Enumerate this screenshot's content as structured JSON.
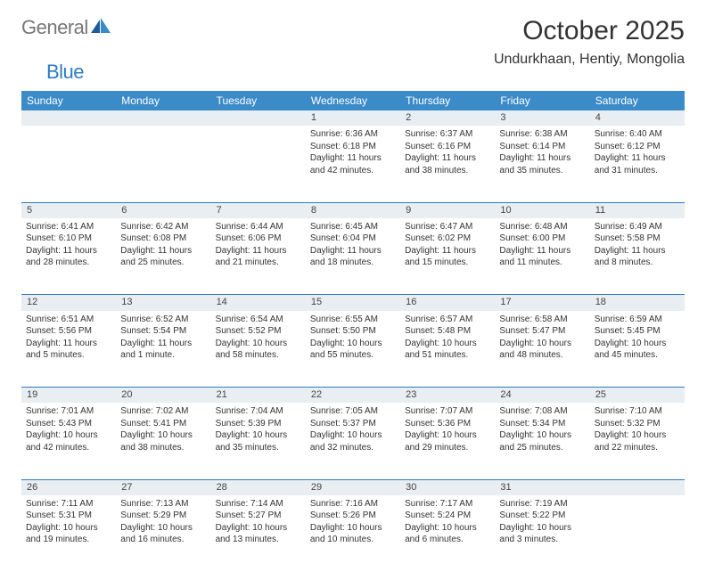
{
  "logo": {
    "word1": "General",
    "word2": "Blue"
  },
  "title": "October 2025",
  "location": "Undurkhaan, Hentiy, Mongolia",
  "colors": {
    "header_bg": "#3b8bc9",
    "header_text": "#ffffff",
    "border": "#2f7bbf",
    "daynum_bg": "#e9eef2",
    "logo_gray": "#777777",
    "logo_blue": "#2f7bbf"
  },
  "day_names": [
    "Sunday",
    "Monday",
    "Tuesday",
    "Wednesday",
    "Thursday",
    "Friday",
    "Saturday"
  ],
  "weeks": [
    {
      "nums": [
        "",
        "",
        "",
        "1",
        "2",
        "3",
        "4"
      ],
      "cells": [
        {},
        {},
        {},
        {
          "sunrise": "Sunrise: 6:36 AM",
          "sunset": "Sunset: 6:18 PM",
          "day1": "Daylight: 11 hours",
          "day2": "and 42 minutes."
        },
        {
          "sunrise": "Sunrise: 6:37 AM",
          "sunset": "Sunset: 6:16 PM",
          "day1": "Daylight: 11 hours",
          "day2": "and 38 minutes."
        },
        {
          "sunrise": "Sunrise: 6:38 AM",
          "sunset": "Sunset: 6:14 PM",
          "day1": "Daylight: 11 hours",
          "day2": "and 35 minutes."
        },
        {
          "sunrise": "Sunrise: 6:40 AM",
          "sunset": "Sunset: 6:12 PM",
          "day1": "Daylight: 11 hours",
          "day2": "and 31 minutes."
        }
      ]
    },
    {
      "nums": [
        "5",
        "6",
        "7",
        "8",
        "9",
        "10",
        "11"
      ],
      "cells": [
        {
          "sunrise": "Sunrise: 6:41 AM",
          "sunset": "Sunset: 6:10 PM",
          "day1": "Daylight: 11 hours",
          "day2": "and 28 minutes."
        },
        {
          "sunrise": "Sunrise: 6:42 AM",
          "sunset": "Sunset: 6:08 PM",
          "day1": "Daylight: 11 hours",
          "day2": "and 25 minutes."
        },
        {
          "sunrise": "Sunrise: 6:44 AM",
          "sunset": "Sunset: 6:06 PM",
          "day1": "Daylight: 11 hours",
          "day2": "and 21 minutes."
        },
        {
          "sunrise": "Sunrise: 6:45 AM",
          "sunset": "Sunset: 6:04 PM",
          "day1": "Daylight: 11 hours",
          "day2": "and 18 minutes."
        },
        {
          "sunrise": "Sunrise: 6:47 AM",
          "sunset": "Sunset: 6:02 PM",
          "day1": "Daylight: 11 hours",
          "day2": "and 15 minutes."
        },
        {
          "sunrise": "Sunrise: 6:48 AM",
          "sunset": "Sunset: 6:00 PM",
          "day1": "Daylight: 11 hours",
          "day2": "and 11 minutes."
        },
        {
          "sunrise": "Sunrise: 6:49 AM",
          "sunset": "Sunset: 5:58 PM",
          "day1": "Daylight: 11 hours",
          "day2": "and 8 minutes."
        }
      ]
    },
    {
      "nums": [
        "12",
        "13",
        "14",
        "15",
        "16",
        "17",
        "18"
      ],
      "cells": [
        {
          "sunrise": "Sunrise: 6:51 AM",
          "sunset": "Sunset: 5:56 PM",
          "day1": "Daylight: 11 hours",
          "day2": "and 5 minutes."
        },
        {
          "sunrise": "Sunrise: 6:52 AM",
          "sunset": "Sunset: 5:54 PM",
          "day1": "Daylight: 11 hours",
          "day2": "and 1 minute."
        },
        {
          "sunrise": "Sunrise: 6:54 AM",
          "sunset": "Sunset: 5:52 PM",
          "day1": "Daylight: 10 hours",
          "day2": "and 58 minutes."
        },
        {
          "sunrise": "Sunrise: 6:55 AM",
          "sunset": "Sunset: 5:50 PM",
          "day1": "Daylight: 10 hours",
          "day2": "and 55 minutes."
        },
        {
          "sunrise": "Sunrise: 6:57 AM",
          "sunset": "Sunset: 5:48 PM",
          "day1": "Daylight: 10 hours",
          "day2": "and 51 minutes."
        },
        {
          "sunrise": "Sunrise: 6:58 AM",
          "sunset": "Sunset: 5:47 PM",
          "day1": "Daylight: 10 hours",
          "day2": "and 48 minutes."
        },
        {
          "sunrise": "Sunrise: 6:59 AM",
          "sunset": "Sunset: 5:45 PM",
          "day1": "Daylight: 10 hours",
          "day2": "and 45 minutes."
        }
      ]
    },
    {
      "nums": [
        "19",
        "20",
        "21",
        "22",
        "23",
        "24",
        "25"
      ],
      "cells": [
        {
          "sunrise": "Sunrise: 7:01 AM",
          "sunset": "Sunset: 5:43 PM",
          "day1": "Daylight: 10 hours",
          "day2": "and 42 minutes."
        },
        {
          "sunrise": "Sunrise: 7:02 AM",
          "sunset": "Sunset: 5:41 PM",
          "day1": "Daylight: 10 hours",
          "day2": "and 38 minutes."
        },
        {
          "sunrise": "Sunrise: 7:04 AM",
          "sunset": "Sunset: 5:39 PM",
          "day1": "Daylight: 10 hours",
          "day2": "and 35 minutes."
        },
        {
          "sunrise": "Sunrise: 7:05 AM",
          "sunset": "Sunset: 5:37 PM",
          "day1": "Daylight: 10 hours",
          "day2": "and 32 minutes."
        },
        {
          "sunrise": "Sunrise: 7:07 AM",
          "sunset": "Sunset: 5:36 PM",
          "day1": "Daylight: 10 hours",
          "day2": "and 29 minutes."
        },
        {
          "sunrise": "Sunrise: 7:08 AM",
          "sunset": "Sunset: 5:34 PM",
          "day1": "Daylight: 10 hours",
          "day2": "and 25 minutes."
        },
        {
          "sunrise": "Sunrise: 7:10 AM",
          "sunset": "Sunset: 5:32 PM",
          "day1": "Daylight: 10 hours",
          "day2": "and 22 minutes."
        }
      ]
    },
    {
      "nums": [
        "26",
        "27",
        "28",
        "29",
        "30",
        "31",
        ""
      ],
      "cells": [
        {
          "sunrise": "Sunrise: 7:11 AM",
          "sunset": "Sunset: 5:31 PM",
          "day1": "Daylight: 10 hours",
          "day2": "and 19 minutes."
        },
        {
          "sunrise": "Sunrise: 7:13 AM",
          "sunset": "Sunset: 5:29 PM",
          "day1": "Daylight: 10 hours",
          "day2": "and 16 minutes."
        },
        {
          "sunrise": "Sunrise: 7:14 AM",
          "sunset": "Sunset: 5:27 PM",
          "day1": "Daylight: 10 hours",
          "day2": "and 13 minutes."
        },
        {
          "sunrise": "Sunrise: 7:16 AM",
          "sunset": "Sunset: 5:26 PM",
          "day1": "Daylight: 10 hours",
          "day2": "and 10 minutes."
        },
        {
          "sunrise": "Sunrise: 7:17 AM",
          "sunset": "Sunset: 5:24 PM",
          "day1": "Daylight: 10 hours",
          "day2": "and 6 minutes."
        },
        {
          "sunrise": "Sunrise: 7:19 AM",
          "sunset": "Sunset: 5:22 PM",
          "day1": "Daylight: 10 hours",
          "day2": "and 3 minutes."
        },
        {}
      ]
    }
  ]
}
